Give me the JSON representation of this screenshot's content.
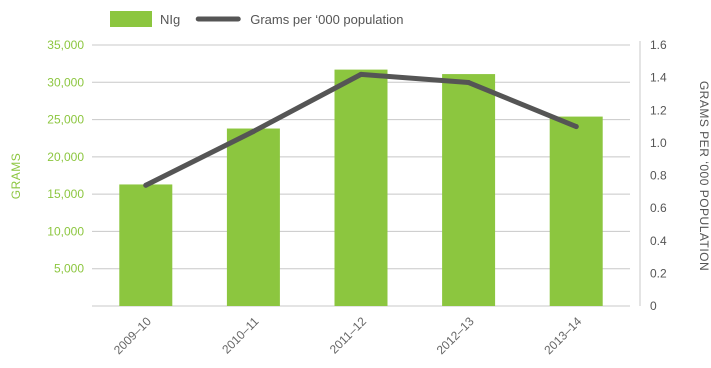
{
  "chart_data": {
    "type": "bar",
    "title": "",
    "categories": [
      "2009–10",
      "2010–11",
      "2011–12",
      "2012–13",
      "2013–14"
    ],
    "series": [
      {
        "name": "NIg",
        "type": "bar",
        "axis": "left",
        "color": "#8cc63f",
        "values": [
          16300,
          23800,
          31700,
          31100,
          25400
        ]
      },
      {
        "name": "Grams per ‘000 population",
        "type": "line",
        "axis": "right",
        "color": "#555555",
        "values": [
          0.74,
          1.07,
          1.42,
          1.37,
          1.1
        ]
      }
    ],
    "y_left": {
      "label": "GRAMS",
      "range": [
        0,
        35000
      ],
      "ticks": [
        "5,000",
        "10,000",
        "15,000",
        "20,000",
        "25,000",
        "30,000",
        "35,000"
      ],
      "tick_values": [
        5000,
        10000,
        15000,
        20000,
        25000,
        30000,
        35000
      ]
    },
    "y_right": {
      "label": "GRAMS PER ‘000 POPULATION",
      "range": [
        0,
        1.6
      ],
      "ticks": [
        "0",
        "0.2",
        "0.4",
        "0.6",
        "0.8",
        "1.0",
        "1.2",
        "1.4",
        "1.6"
      ],
      "tick_values": [
        0,
        0.2,
        0.4,
        0.6,
        0.8,
        1.0,
        1.2,
        1.4,
        1.6
      ]
    },
    "grid": true,
    "legend": "top-left"
  }
}
